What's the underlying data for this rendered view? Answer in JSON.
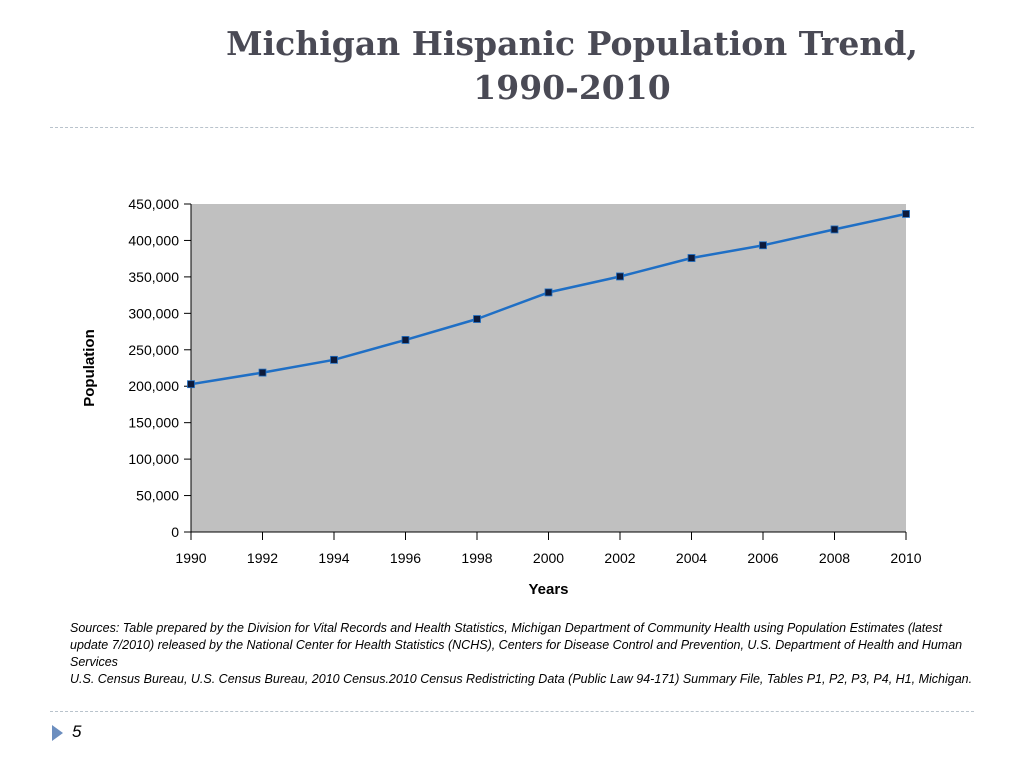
{
  "slide": {
    "title_line1": "Michigan Hispanic Population Trend,",
    "title_line2": "1990-2010",
    "sources_line1": "Sources: Table prepared by the Division for Vital Records and Health Statistics, Michigan Department of Community Health using Population Estimates (latest update 7/2010) released by the National Center for Health Statistics (NCHS), Centers for Disease Control and Prevention, U.S. Department of Health and Human Services",
    "sources_line2": "U.S. Census Bureau, U.S. Census Bureau, 2010 Census.2010 Census Redistricting Data (Public Law 94-171) Summary File, Tables P1, P2, P3, P4, H1, Michigan.",
    "slide_number": "5"
  },
  "colors": {
    "title": "#4a4a55",
    "plot_background": "#c0c0c0",
    "line": "#1f6fc5",
    "marker": "#0d1a3a",
    "footer_arrow": "#6c8ebf"
  },
  "chart_data": {
    "type": "line",
    "title": "",
    "xlabel": "Years",
    "ylabel": "Population",
    "x": [
      1990,
      1992,
      1994,
      1996,
      1998,
      2000,
      2002,
      2004,
      2006,
      2008,
      2010
    ],
    "x_tick_labels": [
      "1990",
      "1992",
      "1994",
      "1996",
      "1998",
      "2000",
      "2002",
      "2004",
      "2006",
      "2008",
      "2010"
    ],
    "y_tick_labels": [
      "0",
      "50,000",
      "100,000",
      "150,000",
      "200,000",
      "250,000",
      "300,000",
      "350,000",
      "400,000",
      "450,000"
    ],
    "y_ticks": [
      0,
      50000,
      100000,
      150000,
      200000,
      250000,
      300000,
      350000,
      400000,
      450000
    ],
    "xlim": [
      1990,
      2010
    ],
    "ylim": [
      0,
      450000
    ],
    "grid": false,
    "legend": "none",
    "series": [
      {
        "values": [
          202800,
          218700,
          236200,
          263500,
          292200,
          328700,
          350600,
          375900,
          393400,
          415100,
          436400
        ]
      }
    ]
  }
}
